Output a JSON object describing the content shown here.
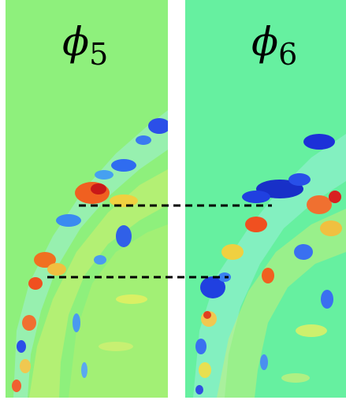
{
  "panels": [
    {
      "symbol": "ϕ",
      "subscript": "5",
      "background": "#8ef07c"
    },
    {
      "symbol": "ϕ",
      "subscript": "6",
      "background": "#66f0a0"
    }
  ]
}
